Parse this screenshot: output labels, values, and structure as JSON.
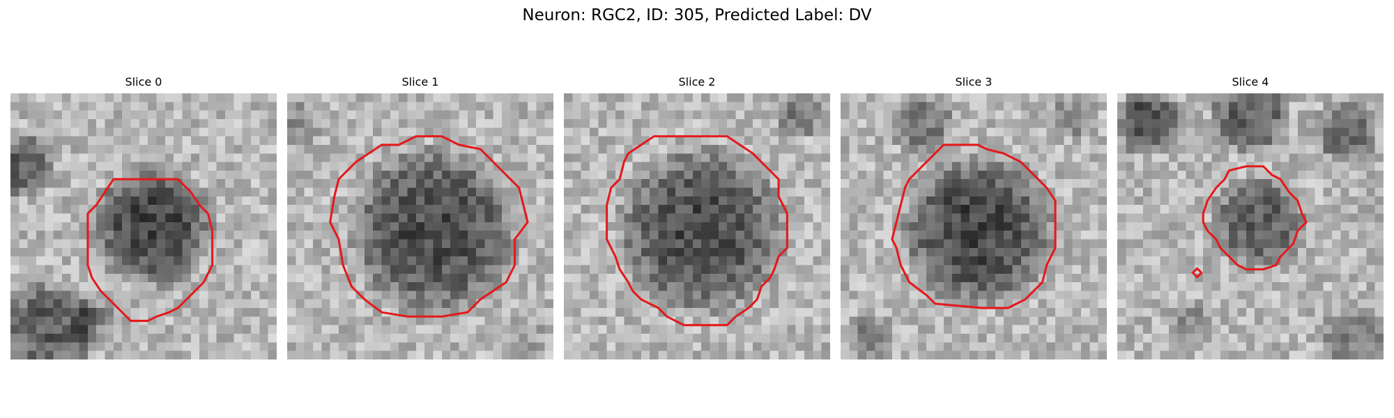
{
  "figure": {
    "title": "Neuron: RGC2, ID: 305, Predicted Label: DV"
  },
  "panels": [
    {
      "title": "Slice 0"
    },
    {
      "title": "Slice 1"
    },
    {
      "title": "Slice 2"
    },
    {
      "title": "Slice 3"
    },
    {
      "title": "Slice 4"
    }
  ],
  "colors": {
    "contour": "#e41a1c",
    "background": "#ffffff"
  }
}
